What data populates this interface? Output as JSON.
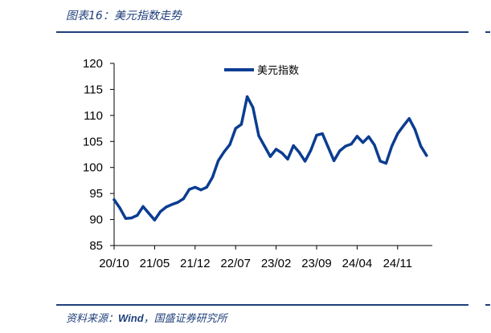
{
  "header": {
    "title": "图表16：美元指数走势"
  },
  "footer": {
    "source_prefix": "资料来源：",
    "source_wind": "Wind",
    "source_suffix": "，国盛证券研究所"
  },
  "colors": {
    "series": "#0b3d91",
    "rule": "#1f3f7a",
    "axis": "#000000"
  },
  "chart_data": {
    "type": "line",
    "title": "",
    "xlabel": "",
    "ylabel": "",
    "ylim": [
      85,
      120
    ],
    "yticks": [
      85,
      90,
      95,
      100,
      105,
      110,
      115,
      120
    ],
    "xticks": [
      "20/10",
      "21/05",
      "21/12",
      "22/07",
      "23/02",
      "23/09",
      "24/04",
      "24/11"
    ],
    "grid": false,
    "legend_position": "top-center",
    "series": [
      {
        "name": "美元指数",
        "x": [
          "2020-10",
          "2020-11",
          "2020-12",
          "2021-01",
          "2021-02",
          "2021-03",
          "2021-04",
          "2021-05",
          "2021-06",
          "2021-07",
          "2021-08",
          "2021-09",
          "2021-10",
          "2021-11",
          "2021-12",
          "2022-01",
          "2022-02",
          "2022-03",
          "2022-04",
          "2022-05",
          "2022-06",
          "2022-07",
          "2022-08",
          "2022-09",
          "2022-10",
          "2022-11",
          "2022-12",
          "2023-01",
          "2023-02",
          "2023-03",
          "2023-04",
          "2023-05",
          "2023-06",
          "2023-07",
          "2023-08",
          "2023-09",
          "2023-10",
          "2023-11",
          "2023-12",
          "2024-01",
          "2024-02",
          "2024-03",
          "2024-04",
          "2024-05",
          "2024-06",
          "2024-07",
          "2024-08",
          "2024-09",
          "2024-10",
          "2024-11",
          "2024-12",
          "2025-01",
          "2025-02",
          "2025-03",
          "2025-04"
        ],
        "values": [
          93.8,
          92.2,
          90.2,
          90.3,
          90.8,
          92.5,
          91.2,
          89.9,
          91.5,
          92.4,
          92.9,
          93.3,
          94.0,
          95.8,
          96.2,
          95.7,
          96.2,
          98.1,
          101.3,
          103.0,
          104.4,
          107.5,
          108.3,
          113.6,
          111.5,
          106.1,
          104.1,
          102.1,
          103.5,
          102.8,
          101.6,
          104.2,
          102.9,
          101.2,
          103.3,
          106.2,
          106.5,
          103.9,
          101.3,
          103.2,
          104.1,
          104.5,
          106.0,
          104.8,
          105.9,
          104.3,
          101.2,
          100.8,
          104.1,
          106.5,
          108.0,
          109.4,
          107.3,
          104.1,
          102.3
        ]
      }
    ]
  }
}
